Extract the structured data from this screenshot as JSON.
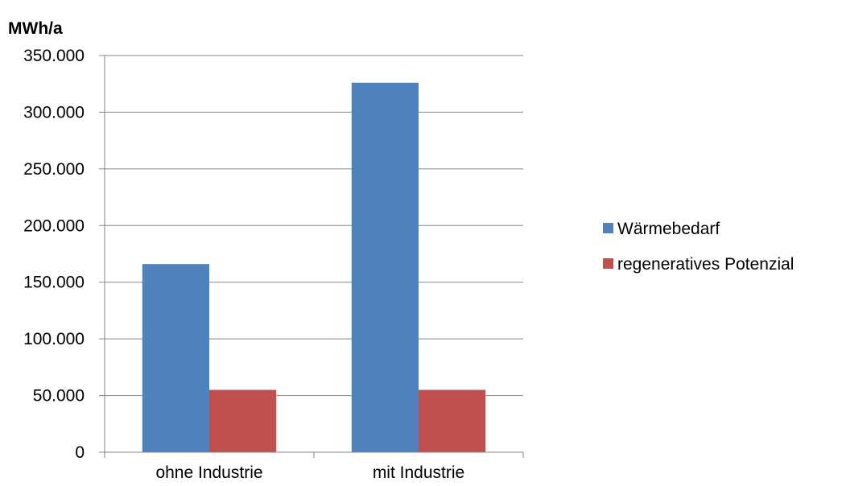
{
  "chart_data": {
    "type": "bar",
    "ylabel": "MWh/a",
    "categories": [
      "ohne Industrie",
      "mit Industrie"
    ],
    "series": [
      {
        "name": "Wärmebedarf",
        "values": [
          166000,
          326000
        ],
        "color": "#4F81BD"
      },
      {
        "name": "regeneratives Potenzial",
        "values": [
          55000,
          55000
        ],
        "color": "#C0504D"
      }
    ],
    "ylim": [
      0,
      350000
    ],
    "yticks": [
      {
        "value": 0,
        "label": "0"
      },
      {
        "value": 50000,
        "label": "50.000"
      },
      {
        "value": 100000,
        "label": "100.000"
      },
      {
        "value": 150000,
        "label": "150.000"
      },
      {
        "value": 200000,
        "label": "200.000"
      },
      {
        "value": 250000,
        "label": "250.000"
      },
      {
        "value": 300000,
        "label": "300.000"
      },
      {
        "value": 350000,
        "label": "350.000"
      }
    ],
    "grid": true,
    "legend_position": "right"
  }
}
